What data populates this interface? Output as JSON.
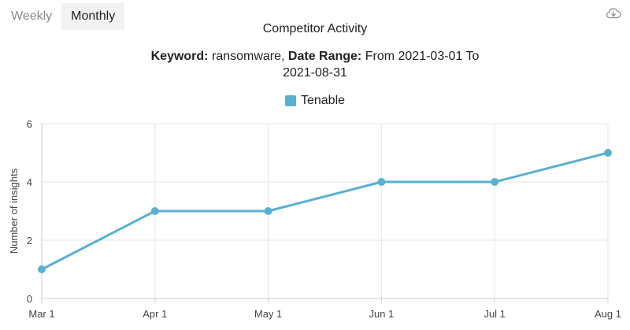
{
  "tabs": [
    {
      "label": "Weekly",
      "active": false
    },
    {
      "label": "Monthly",
      "active": true
    }
  ],
  "icons": {
    "download": "cloud-download-icon"
  },
  "colors": {
    "series": "#5ab0cf",
    "grid": "#e6e6e6",
    "axis": "#cccccc"
  },
  "chart_data": {
    "type": "line",
    "title": "Competitor Activity",
    "subtitle": {
      "keyword_label": "Keyword:",
      "keyword": "ransomware,",
      "range_label": "Date Range:",
      "range_text": "From 2021-03-01 To",
      "range_end": "2021-08-31"
    },
    "xlabel": "",
    "ylabel": "Number of insights",
    "categories": [
      "Mar 1",
      "Apr 1",
      "May 1",
      "Jun 1",
      "Jul 1",
      "Aug 1"
    ],
    "ylim": [
      0,
      6
    ],
    "yticks": [
      0,
      2,
      4,
      6
    ],
    "grid": true,
    "legend_position": "top-center",
    "series": [
      {
        "name": "Tenable",
        "values": [
          1,
          3,
          3,
          4,
          4,
          5
        ]
      }
    ]
  }
}
